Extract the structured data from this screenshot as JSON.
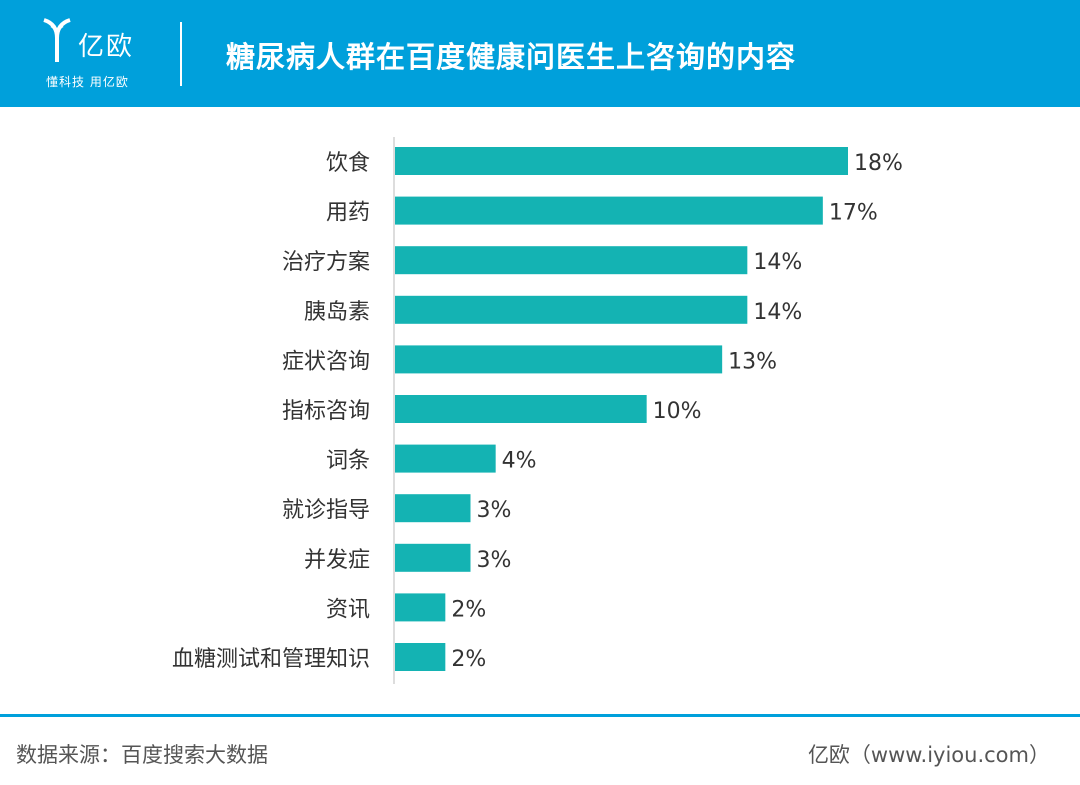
{
  "brand": {
    "name": "亿欧",
    "slogan": "懂科技 用亿欧"
  },
  "title": "糖尿病人群在百度健康问医生上咨询的内容",
  "chart_data": {
    "type": "bar",
    "orientation": "horizontal",
    "categories": [
      "饮食",
      "用药",
      "治疗方案",
      "胰岛素",
      "症状咨询",
      "指标咨询",
      "词条",
      "就诊指导",
      "并发症",
      "资讯",
      "血糖测试和管理知识"
    ],
    "values": [
      18,
      17,
      14,
      14,
      13,
      10,
      4,
      3,
      3,
      2,
      2
    ],
    "data_labels": [
      "18%",
      "17%",
      "14%",
      "14%",
      "13%",
      "10%",
      "4%",
      "3%",
      "3%",
      "2%",
      "2%"
    ],
    "unit": "%",
    "bar_color": "#14b3b3",
    "grid": false,
    "legend": "none"
  },
  "footer": {
    "source": "数据来源：百度搜索大数据",
    "credit": "亿欧（www.iyiou.com）"
  },
  "colors": {
    "header": "#00a0db",
    "bar": "#14b3b3",
    "axis": "#bbbbbb",
    "text": "#333333"
  }
}
